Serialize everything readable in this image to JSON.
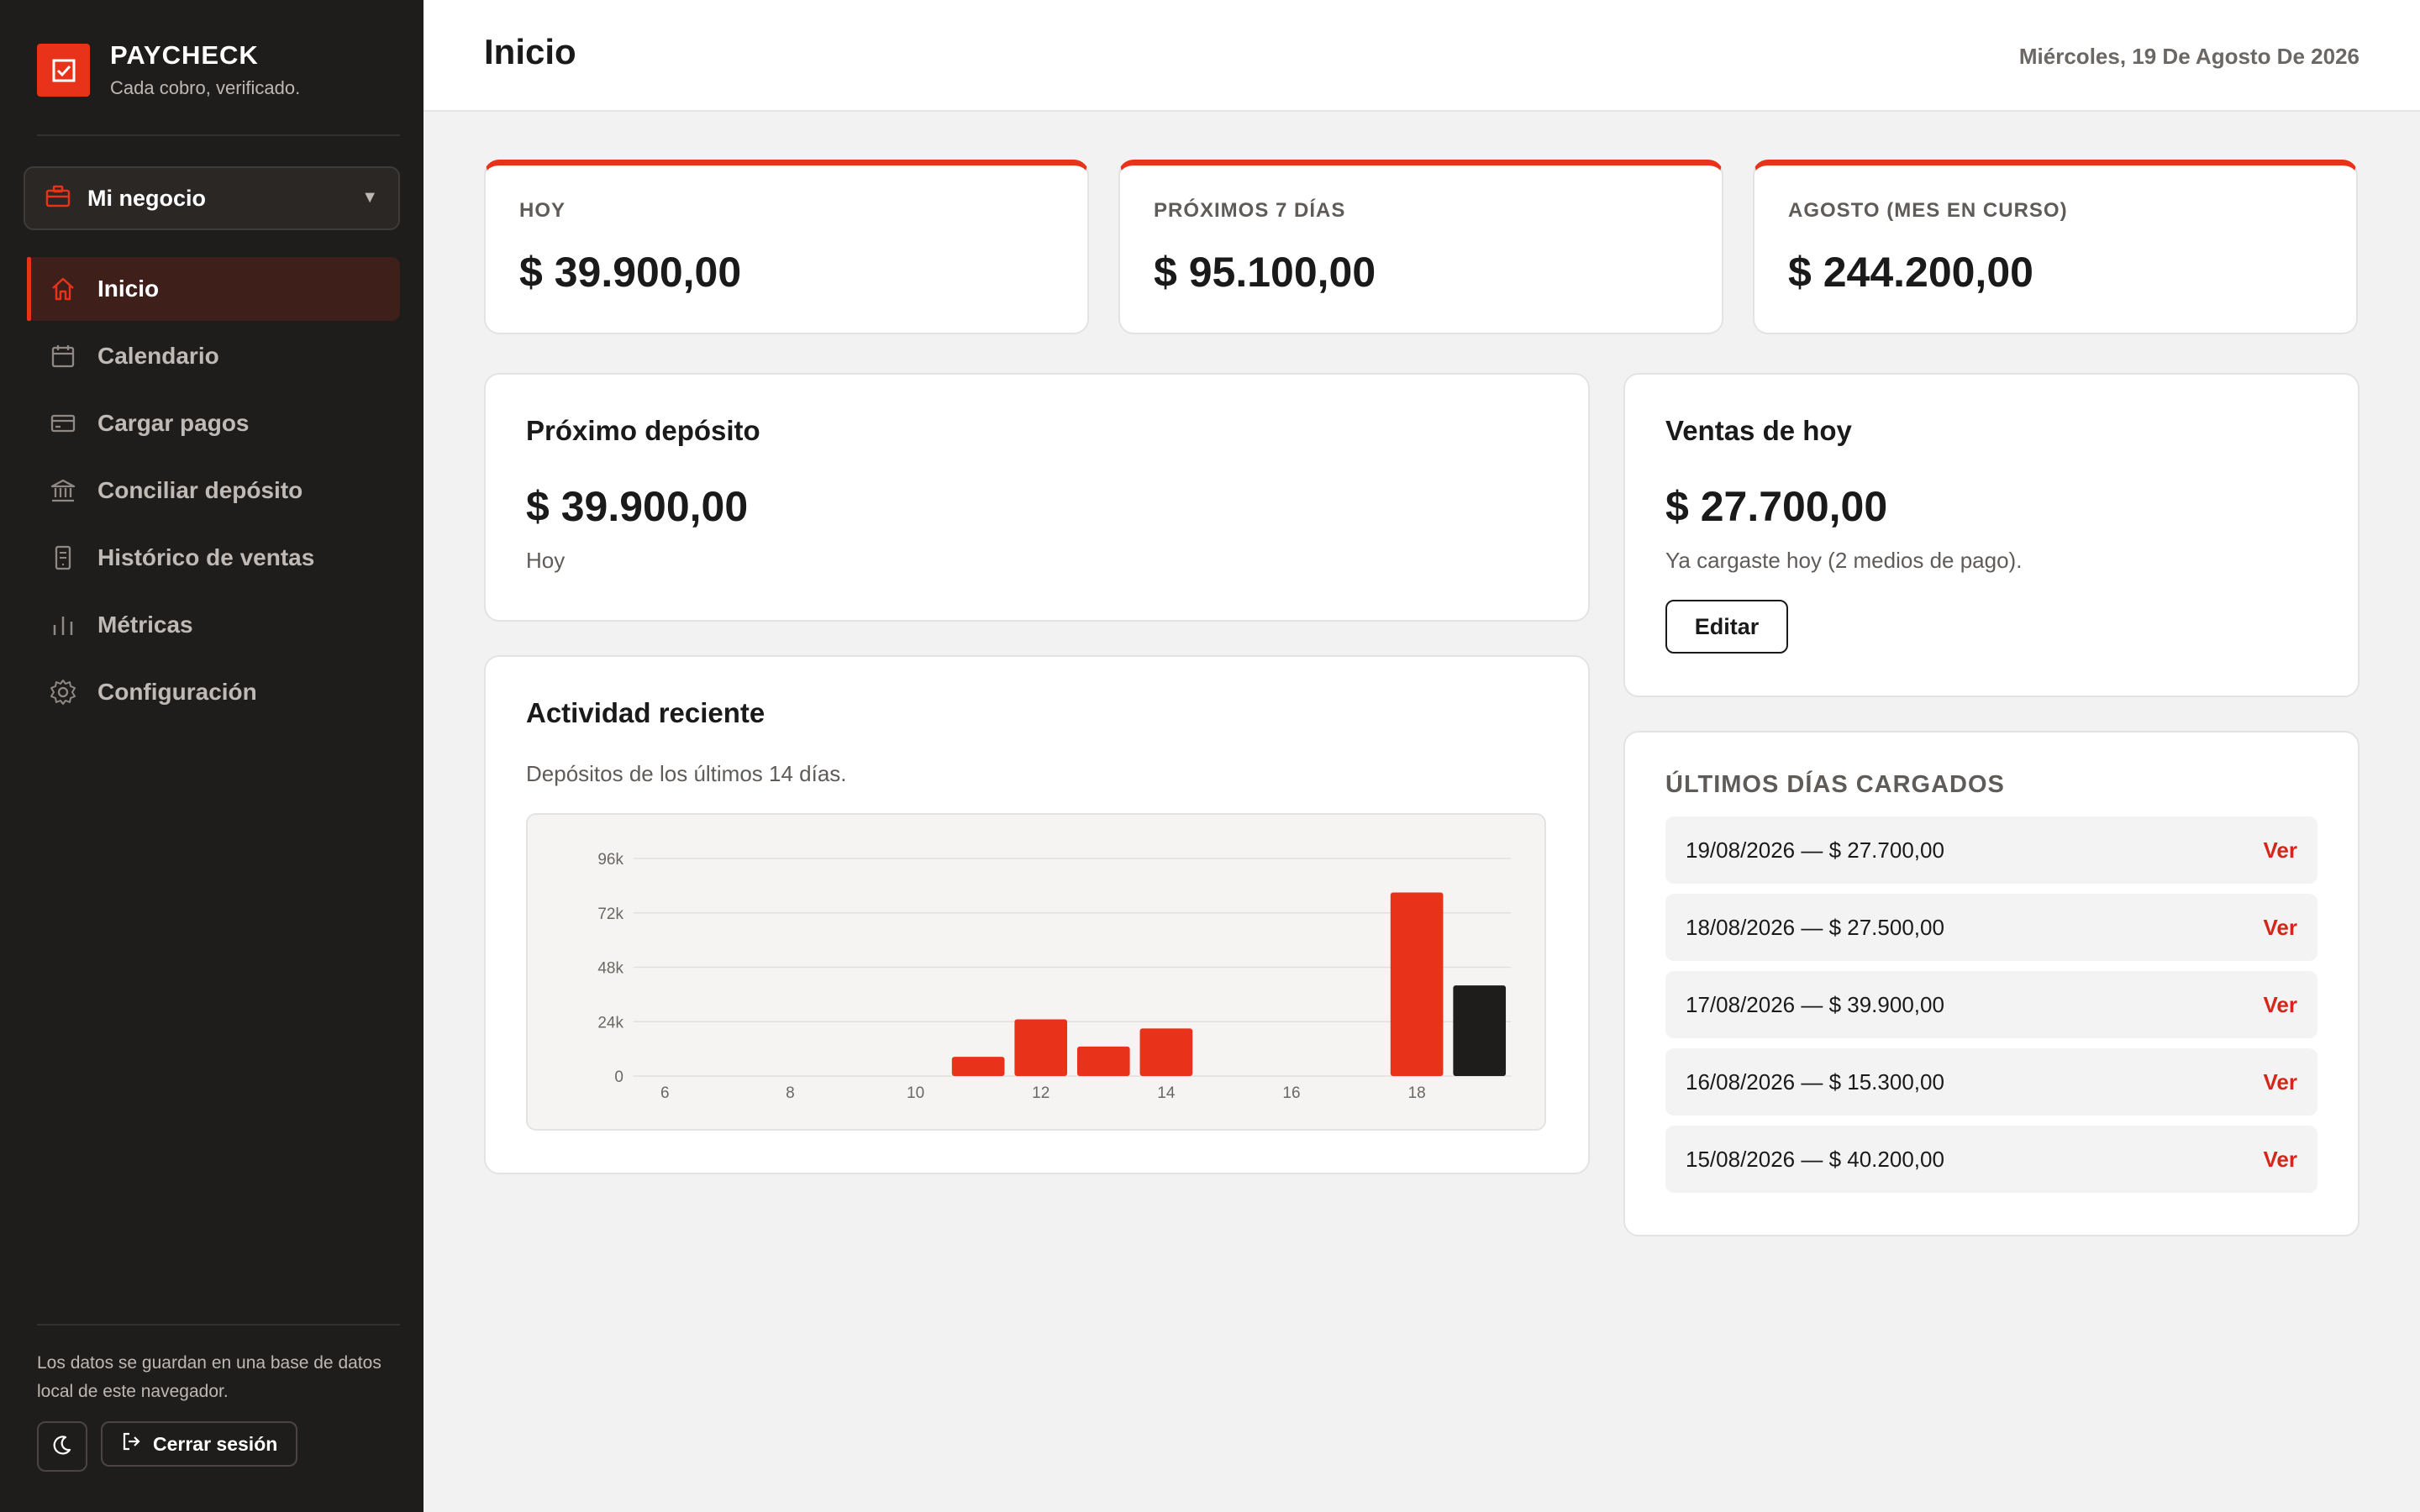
{
  "brand": {
    "name": "PAYCHECK",
    "tagline": "Cada cobro, verificado."
  },
  "business_select": {
    "label": "Mi negocio"
  },
  "nav": {
    "items": [
      {
        "label": "Inicio",
        "icon": "home-icon",
        "active": true
      },
      {
        "label": "Calendario",
        "icon": "calendar-icon"
      },
      {
        "label": "Cargar pagos",
        "icon": "credit-card-icon"
      },
      {
        "label": "Conciliar depósito",
        "icon": "bank-icon"
      },
      {
        "label": "Histórico de ventas",
        "icon": "receipt-icon"
      },
      {
        "label": "Métricas",
        "icon": "bar-chart-icon"
      },
      {
        "label": "Configuración",
        "icon": "gear-icon"
      }
    ]
  },
  "sidebar_footer": {
    "storage_note": "Los datos se guardan en una base de datos local de este navegador.",
    "logout_label": "Cerrar sesión"
  },
  "header": {
    "title": "Inicio",
    "date": "Miércoles, 19 De Agosto De 2026"
  },
  "stats": [
    {
      "label": "HOY",
      "value": "$ 39.900,00"
    },
    {
      "label": "PRÓXIMOS 7 DÍAS",
      "value": "$ 95.100,00"
    },
    {
      "label": "AGOSTO (MES EN CURSO)",
      "value": "$ 244.200,00"
    }
  ],
  "next_deposit": {
    "title": "Próximo depósito",
    "value": "$ 39.900,00",
    "when": "Hoy"
  },
  "today_sales": {
    "title": "Ventas de hoy",
    "value": "$ 27.700,00",
    "note": "Ya cargaste hoy (2 medios de pago).",
    "edit_label": "Editar"
  },
  "activity": {
    "title": "Actividad reciente",
    "subtitle": "Depósitos de los últimos 14 días."
  },
  "recent_days": {
    "title": "ÚLTIMOS DÍAS CARGADOS",
    "action_label": "Ver",
    "rows": [
      "19/08/2026 — $ 27.700,00",
      "18/08/2026 — $ 27.500,00",
      "17/08/2026 — $ 39.900,00",
      "16/08/2026 — $ 15.300,00",
      "15/08/2026 — $ 40.200,00"
    ]
  },
  "colors": {
    "accent": "#e8321a",
    "dark_bar": "#1f1d1c",
    "sidebar": "#1f1d1c"
  },
  "chart_data": {
    "type": "bar",
    "x": [
      6,
      7,
      8,
      9,
      10,
      11,
      12,
      13,
      14,
      15,
      16,
      17,
      18,
      19
    ],
    "values": [
      0,
      0,
      0,
      0,
      0,
      8500,
      25000,
      13000,
      21000,
      0,
      0,
      0,
      81000,
      40000
    ],
    "highlight_last": true,
    "ylim": [
      0,
      96000
    ],
    "yticks": [
      0,
      24000,
      48000,
      72000,
      96000
    ],
    "ytick_labels": [
      "0",
      "24k",
      "48k",
      "72k",
      "96k"
    ],
    "xticks": [
      6,
      8,
      10,
      12,
      14,
      16,
      18
    ],
    "xtick_labels": [
      "6",
      "8",
      "10",
      "12",
      "14",
      "16",
      "18"
    ],
    "grid": true
  }
}
